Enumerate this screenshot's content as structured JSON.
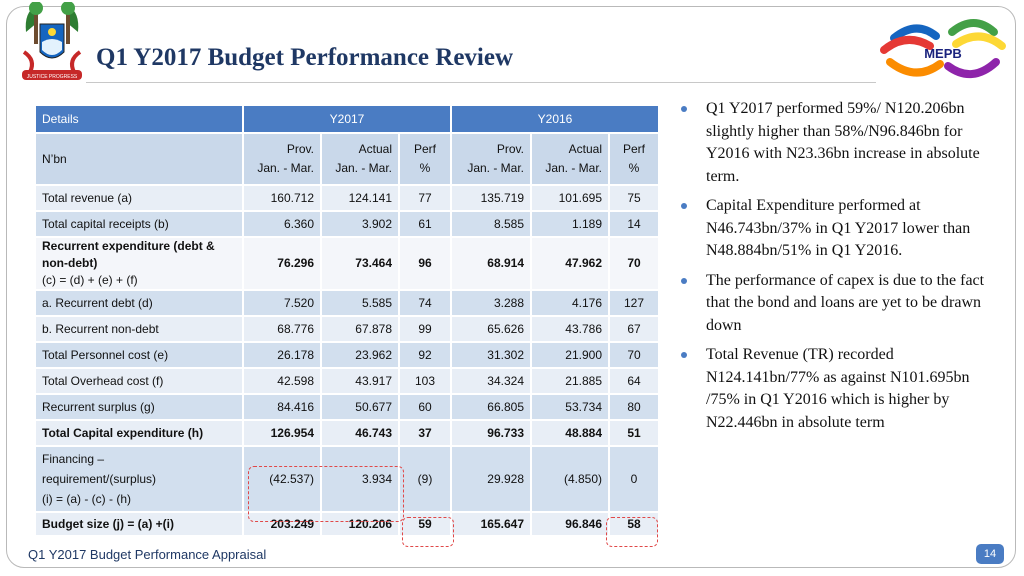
{
  "header": {
    "title": "Q1 Y2017 Budget Performance Review",
    "coat_label": "JUSTICE PROGRESS",
    "logo_text": "MEPB"
  },
  "table": {
    "col_details": "Details",
    "col_y2017": "Y2017",
    "col_y2016": "Y2016",
    "unit": "N’bn",
    "sub": {
      "prov": "Prov.",
      "actual": "Actual",
      "perf": "Perf",
      "period": "Jan. - Mar.",
      "pct": "%"
    },
    "rows": [
      {
        "label": "Total revenue (a)",
        "p17": "160.712",
        "a17": "124.141",
        "f17": "77",
        "p16": "135.719",
        "a16": "101.695",
        "f16": "75"
      },
      {
        "label": "Total capital receipts (b)",
        "p17": "6.360",
        "a17": "3.902",
        "f17": "61",
        "p16": "8.585",
        "a16": "1.189",
        "f16": "14"
      },
      {
        "label1": "Recurrent expenditure (debt &",
        "label2": "non-debt)",
        "label3": "(c) = (d) + (e) + (f)",
        "p17": "76.296",
        "a17": "73.464",
        "f17": "96",
        "p16": "68.914",
        "a16": "47.962",
        "f16": "70"
      },
      {
        "label": "a.   Recurrent debt (d)",
        "p17": "7.520",
        "a17": "5.585",
        "f17": "74",
        "p16": "3.288",
        "a16": "4.176",
        "f16": "127"
      },
      {
        "label": "b.   Recurrent non-debt",
        "p17": "68.776",
        "a17": "67.878",
        "f17": "99",
        "p16": "65.626",
        "a16": "43.786",
        "f16": "67"
      },
      {
        "label": "Total Personnel cost (e)",
        "p17": "26.178",
        "a17": "23.962",
        "f17": "92",
        "p16": "31.302",
        "a16": "21.900",
        "f16": "70"
      },
      {
        "label": "Total Overhead cost (f)",
        "p17": "42.598",
        "a17": "43.917",
        "f17": "103",
        "p16": "34.324",
        "a16": "21.885",
        "f16": "64"
      },
      {
        "label": "Recurrent surplus (g)",
        "p17": "84.416",
        "a17": "50.677",
        "f17": "60",
        "p16": "66.805",
        "a16": "53.734",
        "f16": "80"
      },
      {
        "label": "Total Capital expenditure (h)",
        "p17": "126.954",
        "a17": "46.743",
        "f17": "37",
        "p16": "96.733",
        "a16": "48.884",
        "f16": "51"
      },
      {
        "label1": "Financing –",
        "label2": "requirement/(surplus)",
        "label3": "(i) = (a) - (c) - (h)",
        "p17": "(42.537)",
        "a17": "3.934",
        "f17": "(9)",
        "p16": "29.928",
        "a16": "(4.850)",
        "f16": "0"
      },
      {
        "label": "Budget size (j) = (a) +(i)",
        "p17": "203.249",
        "a17": "120.206",
        "f17": "59",
        "p16": "165.647",
        "a16": "96.846",
        "f16": "58"
      }
    ]
  },
  "bullets": [
    "Q1 Y2017 performed 59%/ N120.206bn slightly higher than 58%/N96.846bn for Y2016 with N23.36bn increase in absolute term.",
    "Capital Expenditure performed at N46.743bn/37% in Q1 Y2017 lower than N48.884bn/51% in Q1 Y2016.",
    "The performance of capex is due to the fact that the bond and loans are yet to be drawn down",
    "Total Revenue (TR) recorded N124.141bn/77% as against N101.695bn /75% in Q1 Y2016 which is higher by N22.446bn in absolute term"
  ],
  "footer": {
    "text": "Q1 Y2017 Budget Performance Appraisal",
    "page": "14"
  },
  "colors": {
    "header_blue": "#4a7cc3",
    "title_navy": "#1f3864",
    "highlight_red": "#e04848"
  }
}
